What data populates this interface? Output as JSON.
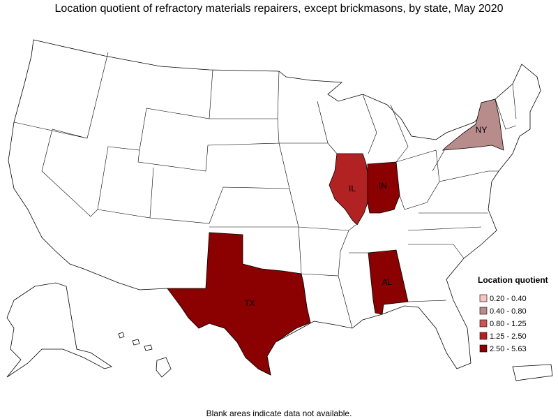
{
  "title": "Location quotient of refractory materials repairers, except brickmasons, by state, May 2020",
  "states": [
    {
      "label": "NY",
      "color": "#b98c8c"
    },
    {
      "label": "IL",
      "color": "#b22222"
    },
    {
      "label": "IN",
      "color": "#8b0000"
    },
    {
      "label": "TX",
      "color": "#8b0000"
    },
    {
      "label": "AL",
      "color": "#8b0000"
    }
  ],
  "legend": {
    "title": "Location quotient",
    "items": [
      {
        "label": "0.20 - 0.40",
        "color": "#f7c3c3"
      },
      {
        "label": "0.40 - 0.80",
        "color": "#b98c8c"
      },
      {
        "label": "0.80 - 1.25",
        "color": "#cd5555"
      },
      {
        "label": "1.25 - 2.50",
        "color": "#b22222"
      },
      {
        "label": "2.50 - 5.63",
        "color": "#8b0000"
      }
    ]
  },
  "footnote": "Blank areas indicate data not available."
}
